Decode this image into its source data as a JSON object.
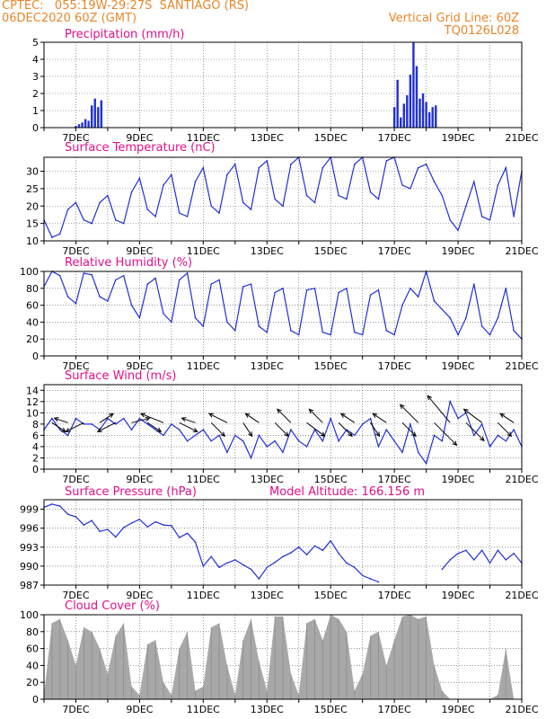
{
  "header": {
    "line1_left": "CPTEC:   055:19W-29:27S  SANTIAGO (RS)",
    "line2_left": "06DEC2020 60Z (GMT)",
    "line1_right": "Vertical Grid Line: 60Z",
    "line2_right": "TQ0126L028"
  },
  "colors": {
    "header_text": "#e8862a",
    "panel_title": "#e0108a",
    "series_line": "#1f2fd6",
    "precip_bar": "#1f2fd6",
    "cloud_fill": "#a8a8a8",
    "wind_arrow": "#000000",
    "frame": "#000000"
  },
  "date_ticks": [
    "7DEC",
    "9DEC",
    "11DEC",
    "13DEC",
    "15DEC",
    "17DEC",
    "19DEC",
    "21DEC"
  ],
  "chart_data": [
    {
      "id": "precip",
      "type": "bar",
      "title": "Precipitation (mm/h)",
      "ylim": [
        0,
        5
      ],
      "yticks": [
        "0",
        "1",
        "2",
        "3",
        "4",
        "5"
      ],
      "x_unit": "day of December 2020 (GMT)",
      "x": [
        7.0,
        7.1,
        7.2,
        7.3,
        7.4,
        7.5,
        7.6,
        7.7,
        7.8,
        17.0,
        17.1,
        17.2,
        17.3,
        17.4,
        17.5,
        17.6,
        17.7,
        17.8,
        17.9,
        18.0,
        18.1,
        18.2,
        18.3
      ],
      "values": [
        0.1,
        0.2,
        0.3,
        0.5,
        0.4,
        1.3,
        1.7,
        1.2,
        1.6,
        1.2,
        2.8,
        0.6,
        1.4,
        1.9,
        3.1,
        5.0,
        3.6,
        1.7,
        2.0,
        1.5,
        0.9,
        1.2,
        1.3
      ]
    },
    {
      "id": "temp",
      "type": "line",
      "title": "Surface Temperature (nC)",
      "ylim": [
        10,
        34
      ],
      "yticks": [
        "10",
        "15",
        "20",
        "25",
        "30"
      ],
      "x_unit": "day of December 2020 (GMT)",
      "x": [
        6.0,
        6.25,
        6.5,
        6.75,
        7.0,
        7.25,
        7.5,
        7.75,
        8.0,
        8.25,
        8.5,
        8.75,
        9.0,
        9.25,
        9.5,
        9.75,
        10.0,
        10.25,
        10.5,
        10.75,
        11.0,
        11.25,
        11.5,
        11.75,
        12.0,
        12.25,
        12.5,
        12.75,
        13.0,
        13.25,
        13.5,
        13.75,
        14.0,
        14.25,
        14.5,
        14.75,
        15.0,
        15.25,
        15.5,
        15.75,
        16.0,
        16.25,
        16.5,
        16.75,
        17.0,
        17.25,
        17.5,
        17.75,
        18.0,
        18.25,
        18.5,
        18.75,
        19.0,
        19.25,
        19.5,
        19.75,
        20.0,
        20.25,
        20.5,
        20.75,
        21.0
      ],
      "values": [
        16,
        11,
        12,
        19,
        21,
        16,
        15,
        21,
        23,
        16,
        15,
        24,
        28,
        19,
        17,
        26,
        29,
        18,
        17,
        27,
        31,
        20,
        18,
        29,
        32,
        21,
        19,
        31,
        33,
        22,
        20,
        32,
        34,
        23,
        21,
        31,
        34,
        23,
        22,
        32,
        34,
        24,
        22,
        33,
        34,
        26,
        25,
        31,
        32,
        27,
        23,
        16,
        13,
        20,
        27,
        17,
        16,
        26,
        31,
        17,
        30
      ]
    },
    {
      "id": "rh",
      "type": "line",
      "title": "Relative Humidity (%)",
      "ylim": [
        0,
        100
      ],
      "yticks": [
        "0",
        "20",
        "40",
        "60",
        "80",
        "100"
      ],
      "x_unit": "day of December 2020 (GMT)",
      "x": [
        6.0,
        6.25,
        6.5,
        6.75,
        7.0,
        7.25,
        7.5,
        7.75,
        8.0,
        8.25,
        8.5,
        8.75,
        9.0,
        9.25,
        9.5,
        9.75,
        10.0,
        10.25,
        10.5,
        10.75,
        11.0,
        11.25,
        11.5,
        11.75,
        12.0,
        12.25,
        12.5,
        12.75,
        13.0,
        13.25,
        13.5,
        13.75,
        14.0,
        14.25,
        14.5,
        14.75,
        15.0,
        15.25,
        15.5,
        15.75,
        16.0,
        16.25,
        16.5,
        16.75,
        17.0,
        17.25,
        17.5,
        17.75,
        18.0,
        18.25,
        18.5,
        18.75,
        19.0,
        19.25,
        19.5,
        19.75,
        20.0,
        20.25,
        20.5,
        20.75,
        21.0
      ],
      "values": [
        82,
        100,
        95,
        70,
        62,
        98,
        96,
        70,
        65,
        90,
        95,
        60,
        45,
        85,
        92,
        50,
        40,
        90,
        98,
        45,
        35,
        85,
        90,
        40,
        30,
        82,
        85,
        35,
        28,
        75,
        80,
        30,
        25,
        78,
        80,
        28,
        25,
        75,
        80,
        28,
        25,
        72,
        78,
        30,
        25,
        60,
        80,
        70,
        100,
        65,
        55,
        45,
        25,
        45,
        85,
        35,
        25,
        45,
        80,
        30,
        20
      ]
    },
    {
      "id": "wind",
      "type": "line",
      "title": "Surface Wind (m/s)",
      "ylim": [
        0,
        15
      ],
      "yticks": [
        "0",
        "2",
        "4",
        "6",
        "8",
        "10",
        "12",
        "14"
      ],
      "x_unit": "day of December 2020 (GMT)",
      "x": [
        6.0,
        6.25,
        6.5,
        6.75,
        7.0,
        7.25,
        7.5,
        7.75,
        8.0,
        8.25,
        8.5,
        8.75,
        9.0,
        9.25,
        9.5,
        9.75,
        10.0,
        10.25,
        10.5,
        10.75,
        11.0,
        11.25,
        11.5,
        11.75,
        12.0,
        12.25,
        12.5,
        12.75,
        13.0,
        13.25,
        13.5,
        13.75,
        14.0,
        14.25,
        14.5,
        14.75,
        15.0,
        15.25,
        15.5,
        15.75,
        16.0,
        16.25,
        16.5,
        16.75,
        17.0,
        17.25,
        17.5,
        17.75,
        18.0,
        18.25,
        18.5,
        18.75,
        19.0,
        19.25,
        19.5,
        19.75,
        20.0,
        20.25,
        20.5,
        20.75,
        21.0
      ],
      "values": [
        7,
        9,
        7,
        6,
        9,
        8,
        8,
        7,
        9,
        8,
        9,
        7,
        9,
        8,
        7,
        6,
        8,
        7,
        5,
        6,
        7,
        5,
        6,
        3,
        6,
        5,
        2,
        6,
        4,
        5,
        3,
        7,
        5,
        4,
        7,
        5,
        9,
        5,
        7,
        6,
        8,
        9,
        4,
        7,
        5,
        3,
        8,
        3,
        1,
        6,
        5,
        12,
        9,
        10,
        6,
        8,
        4,
        6,
        5,
        7,
        4
      ],
      "arrow_times": [
        6.25,
        6.75,
        7.25,
        7.75,
        8.25,
        8.75,
        9.25,
        9.75,
        10.25,
        10.75,
        11.25,
        11.75,
        12.25,
        12.75,
        13.25,
        13.75,
        14.25,
        14.75,
        15.25,
        15.75,
        16.25,
        16.75,
        17.25,
        17.75,
        18.25,
        18.75,
        19.25,
        19.75,
        20.25,
        20.75
      ],
      "arrow_u": [
        1.5,
        -1.5,
        -2.0,
        1.5,
        -2.0,
        2.0,
        1.5,
        -2.5,
        2.0,
        -1.5,
        1.5,
        -2.0,
        1.0,
        -1.5,
        1.5,
        -1.5,
        2.0,
        -1.5,
        1.5,
        -1.5,
        1.0,
        -1.5,
        1.5,
        -2.0,
        2.5,
        -2.5,
        2.0,
        -2.0,
        1.5,
        -1.5
      ],
      "arrow_v": [
        -1.0,
        0.5,
        -1.0,
        1.0,
        -1.0,
        0.5,
        -1.0,
        1.0,
        -1.0,
        0.5,
        -1.5,
        1.0,
        -1.5,
        1.0,
        -1.5,
        1.5,
        -1.5,
        1.5,
        -1.5,
        1.0,
        -1.5,
        1.0,
        -1.5,
        2.0,
        -2.5,
        3.0,
        -2.0,
        1.5,
        -1.5,
        1.0
      ]
    },
    {
      "id": "pressure",
      "type": "line",
      "title": "Surface Pressure (hPa)",
      "subtitle": "Model Altitude: 166.156 m",
      "ylim": [
        987,
        1000.5
      ],
      "yticks": [
        "987",
        "990",
        "993",
        "996",
        "999"
      ],
      "x_unit": "day of December 2020 (GMT)",
      "x": [
        6.0,
        6.25,
        6.5,
        6.75,
        7.0,
        7.25,
        7.5,
        7.75,
        8.0,
        8.25,
        8.5,
        8.75,
        9.0,
        9.25,
        9.5,
        9.75,
        10.0,
        10.25,
        10.5,
        10.75,
        11.0,
        11.25,
        11.5,
        11.75,
        12.0,
        12.25,
        12.5,
        12.75,
        13.0,
        13.25,
        13.5,
        13.75,
        14.0,
        14.25,
        14.5,
        14.75,
        15.0,
        15.25,
        15.5,
        15.75,
        16.0,
        16.25,
        16.5,
        16.75,
        17.0,
        17.25,
        17.5,
        17.75,
        18.0,
        18.25,
        18.5,
        18.75,
        19.0,
        19.25,
        19.5,
        19.75,
        20.0,
        20.25,
        20.5,
        20.75,
        21.0
      ],
      "values": [
        999.3,
        999.8,
        999.5,
        998.2,
        997.8,
        996.5,
        997.2,
        995.5,
        995.8,
        994.6,
        996.1,
        996.8,
        997.4,
        996.2,
        997.0,
        996.5,
        996.4,
        994.5,
        995.2,
        993.8,
        990.0,
        991.5,
        989.8,
        990.5,
        991.0,
        990.2,
        989.5,
        988.0,
        989.8,
        990.6,
        991.5,
        992.1,
        993.0,
        991.8,
        993.2,
        992.5,
        994.0,
        992.0,
        990.5,
        989.8,
        988.5,
        988.0,
        987.5,
        null,
        null,
        null,
        null,
        null,
        null,
        null,
        989.5,
        991.0,
        992.0,
        992.5,
        991.0,
        992.5,
        990.5,
        992.5,
        991.0,
        992.0,
        990.5
      ]
    },
    {
      "id": "cloud",
      "type": "area",
      "title": "Cloud Cover (%)",
      "ylim": [
        0,
        100
      ],
      "yticks": [
        "0",
        "20",
        "40",
        "60",
        "80",
        "100"
      ],
      "x_unit": "day of December 2020 (GMT)",
      "x": [
        6.0,
        6.25,
        6.5,
        6.75,
        7.0,
        7.25,
        7.5,
        7.75,
        8.0,
        8.25,
        8.5,
        8.75,
        9.0,
        9.25,
        9.5,
        9.75,
        10.0,
        10.25,
        10.5,
        10.75,
        11.0,
        11.25,
        11.5,
        11.75,
        12.0,
        12.25,
        12.5,
        12.75,
        13.0,
        13.25,
        13.5,
        13.75,
        14.0,
        14.25,
        14.5,
        14.75,
        15.0,
        15.25,
        15.5,
        15.75,
        16.0,
        16.25,
        16.5,
        16.75,
        17.0,
        17.25,
        17.5,
        17.75,
        18.0,
        18.25,
        18.5,
        18.75,
        19.0,
        19.25,
        19.5,
        19.75,
        20.0,
        20.25,
        20.5,
        20.75,
        21.0
      ],
      "values": [
        5,
        90,
        95,
        70,
        40,
        85,
        80,
        60,
        30,
        75,
        90,
        15,
        5,
        65,
        70,
        20,
        5,
        60,
        80,
        10,
        15,
        85,
        90,
        40,
        5,
        70,
        95,
        45,
        10,
        98,
        98,
        30,
        5,
        90,
        95,
        70,
        100,
        95,
        80,
        10,
        30,
        75,
        80,
        40,
        70,
        98,
        100,
        95,
        98,
        40,
        10,
        0,
        0,
        0,
        0,
        0,
        0,
        5,
        60,
        0,
        0
      ]
    }
  ]
}
